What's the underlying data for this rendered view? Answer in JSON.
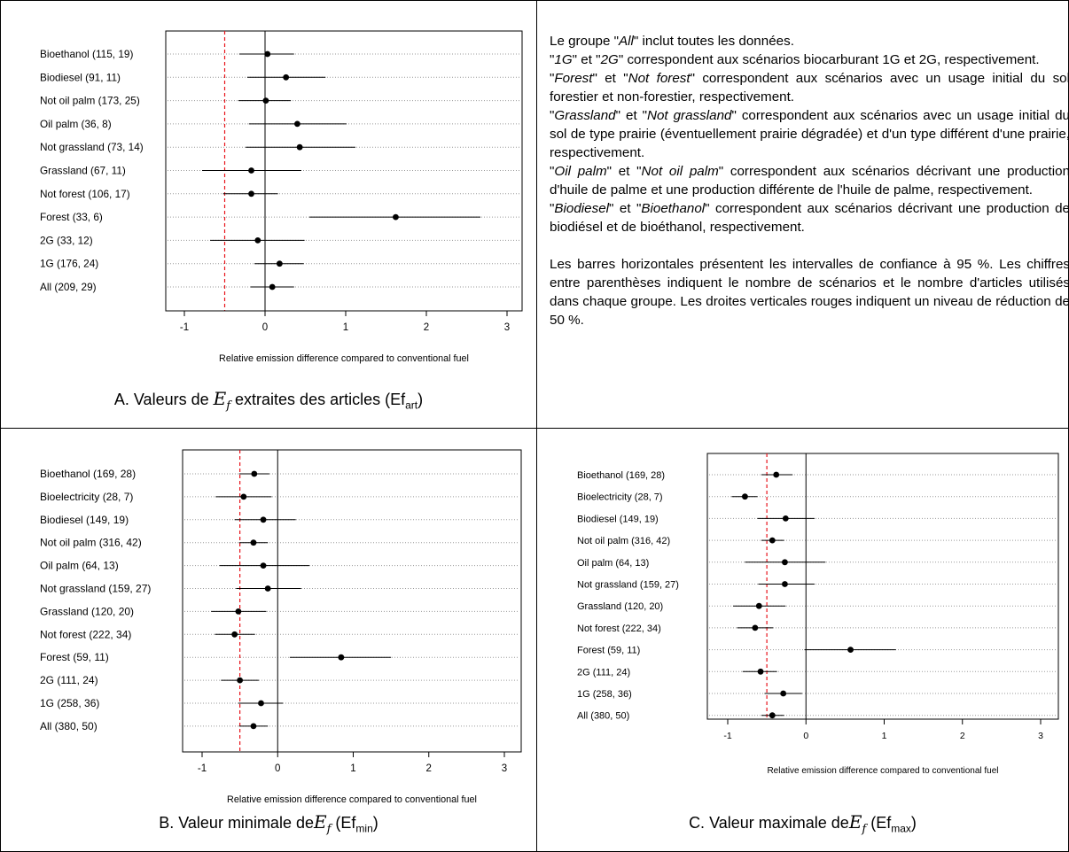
{
  "panels": [
    {
      "caption": {
        "prefix": "A. Valeurs de ",
        "symbol": "E",
        "sub_symbol": "f",
        "middle": " extraites des articles (",
        "ef": "Ef",
        "ef_sub": "art",
        "suffix": ")"
      },
      "chart_data": {
        "type": "forest",
        "xlabel": "Relative emission difference compared to conventional fuel",
        "xlim": [
          -1,
          3
        ],
        "xticks": [
          -1,
          0,
          1,
          2,
          3
        ],
        "reference_line": -0.5,
        "zero_line": 0,
        "categories": [
          "Bioethanol (115, 19)",
          "Biodiesel (91, 11)",
          "Not oil palm (173, 25)",
          "Oil palm (36, 8)",
          "Not grassland (73, 14)",
          "Grassland (67, 11)",
          "Not forest (106, 17)",
          "Forest (33, 6)",
          "2G (33, 12)",
          "1G (176, 24)",
          "All (209, 29)"
        ],
        "estimate": [
          0.03,
          0.26,
          0.01,
          0.4,
          0.43,
          -0.17,
          -0.17,
          1.62,
          -0.09,
          0.18,
          0.09
        ],
        "ci_low": [
          -0.32,
          -0.22,
          -0.33,
          -0.2,
          -0.24,
          -0.78,
          -0.52,
          0.55,
          -0.68,
          -0.13,
          -0.18
        ],
        "ci_high": [
          0.36,
          0.75,
          0.32,
          1.01,
          1.12,
          0.45,
          0.16,
          2.67,
          0.49,
          0.48,
          0.36
        ],
        "colors": {
          "reference": "#e8141b",
          "points": "#000000",
          "grid": "#9a9a9a"
        }
      }
    },
    {
      "caption": {
        "prefix": "B. Valeur minimale de",
        "symbol": "E",
        "sub_symbol": "f",
        "middle": " (",
        "ef": "Ef",
        "ef_sub": "min",
        "suffix": ")"
      },
      "chart_data": {
        "type": "forest",
        "xlabel": "Relative emission difference compared to conventional fuel",
        "xlim": [
          -1,
          3
        ],
        "xticks": [
          -1,
          0,
          1,
          2,
          3
        ],
        "reference_line": -0.5,
        "zero_line": 0,
        "categories": [
          "Bioethanol (169, 28)",
          "Bioelectricity (28, 7)",
          "Biodiesel (149, 19)",
          "Not oil palm (316, 42)",
          "Oil palm (64, 13)",
          "Not grassland (159, 27)",
          "Grassland (120, 20)",
          "Not forest (222, 34)",
          "Forest (59, 11)",
          "2G (111, 24)",
          "1G (258, 36)",
          "All (380, 50)"
        ],
        "estimate": [
          -0.31,
          -0.45,
          -0.19,
          -0.32,
          -0.19,
          -0.13,
          -0.52,
          -0.57,
          0.84,
          -0.5,
          -0.22,
          -0.32
        ],
        "ci_low": [
          -0.51,
          -0.82,
          -0.57,
          -0.51,
          -0.77,
          -0.55,
          -0.88,
          -0.83,
          0.16,
          -0.75,
          -0.52,
          -0.51
        ],
        "ci_high": [
          -0.11,
          -0.08,
          0.24,
          -0.13,
          0.42,
          0.31,
          -0.15,
          -0.3,
          1.5,
          -0.25,
          0.07,
          -0.13
        ],
        "colors": {
          "reference": "#e8141b",
          "points": "#000000",
          "grid": "#9a9a9a"
        }
      }
    },
    {
      "caption": {
        "prefix": "C. Valeur maximale de",
        "symbol": "E",
        "sub_symbol": "f",
        "middle": " (",
        "ef": "Ef",
        "ef_sub": "max",
        "suffix": ")"
      },
      "chart_data": {
        "type": "forest",
        "xlabel": "Relative emission difference compared to conventional fuel",
        "xlim": [
          -1,
          3
        ],
        "xticks": [
          -1,
          0,
          1,
          2,
          3
        ],
        "reference_line": -0.5,
        "zero_line": 0,
        "categories": [
          "Bioethanol (169, 28)",
          "Bioelectricity (28, 7)",
          "Biodiesel (149, 19)",
          "Not oil palm (316, 42)",
          "Oil palm (64, 13)",
          "Not grassland (159, 27)",
          "Grassland (120, 20)",
          "Not forest (222, 34)",
          "Forest (59, 11)",
          "2G (111, 24)",
          "1G (258, 36)",
          "All (380, 50)"
        ],
        "estimate": [
          -0.38,
          -0.78,
          -0.26,
          -0.43,
          -0.27,
          -0.27,
          -0.6,
          -0.65,
          0.57,
          -0.58,
          -0.29,
          -0.43
        ],
        "ci_low": [
          -0.57,
          -0.95,
          -0.62,
          -0.57,
          -0.78,
          -0.61,
          -0.93,
          -0.88,
          -0.02,
          -0.81,
          -0.53,
          -0.57
        ],
        "ci_high": [
          -0.17,
          -0.62,
          0.11,
          -0.28,
          0.25,
          0.11,
          -0.26,
          -0.42,
          1.15,
          -0.37,
          -0.05,
          -0.28
        ],
        "colors": {
          "reference": "#e8141b",
          "points": "#000000",
          "grid": "#9a9a9a"
        }
      }
    }
  ],
  "text_panel": {
    "l1_pre": "Le groupe \"",
    "l1_it": "All",
    "l1_post": "\" inclut toutes les données.",
    "l2_q1": "\"",
    "l2_it1": "1G",
    "l2_mid": "\" et \"",
    "l2_it2": "2G",
    "l2_post": "\" correspondent aux scénarios biocarburant 1G et 2G, respectivement.",
    "l3_q1": "\"",
    "l3_it1": "Forest",
    "l3_mid": "\" et \"",
    "l3_it2": "Not forest",
    "l3_post": "\" correspondent aux scénarios avec un usage initial du sol forestier et non-forestier, respectivement.",
    "l4_q1": "\"",
    "l4_it1": "Grassland",
    "l4_mid": "\" et \"",
    "l4_it2": "Not grassland",
    "l4_post": "\" correspondent aux scénarios avec un usage initial du sol de type prairie (éventuellement prairie dégradée) et d'un type différent d'une prairie, respectivement.",
    "l5_q1": "\"",
    "l5_it1": "Oil palm",
    "l5_mid": "\" et \"",
    "l5_it2": "Not oil palm",
    "l5_post": "\" correspondent aux scénarios décrivant une production d'huile de palme et une production différente de l'huile de palme, respectivement.",
    "l6_q1": "\"",
    "l6_it1": "Biodiesel",
    "l6_mid": "\" et \"",
    "l6_it2": "Bioethanol",
    "l6_post": "\" correspondent aux scénarios décrivant une production de biodiésel et de bioéthanol, respectivement.",
    "l7": "Les barres horizontales présentent les intervalles de confiance à 95 %. Les chiffres entre parenthèses indiquent le nombre de scénarios et le nombre d'articles utilisés dans chaque groupe. Les droites verticales rouges indiquent un niveau de réduction de 50 %."
  }
}
